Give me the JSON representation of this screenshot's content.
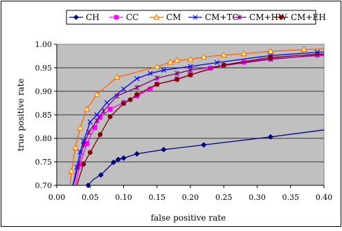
{
  "chart_data": {
    "type": "line",
    "title": "",
    "xlabel": "false positive rate",
    "ylabel": "true positive rate",
    "xlim": [
      0.0,
      0.4
    ],
    "ylim": [
      0.7,
      1.0
    ],
    "x_ticks": [
      "0.00",
      "0.05",
      "0.10",
      "0.15",
      "0.20",
      "0.25",
      "0.30",
      "0.35",
      "0.40"
    ],
    "y_ticks": [
      "0.70",
      "0.75",
      "0.80",
      "0.85",
      "0.90",
      "0.95",
      "1.00"
    ],
    "grid": "horizontal",
    "legend_position": "top",
    "plot_background": "#c0c0c0",
    "series": [
      {
        "name": "CH",
        "color": "#000080",
        "marker": "diamond",
        "points": [
          [
            0.047,
            0.7
          ],
          [
            0.055,
            0.713
          ],
          [
            0.066,
            0.722
          ],
          [
            0.085,
            0.749
          ],
          [
            0.092,
            0.755
          ],
          [
            0.1,
            0.758
          ],
          [
            0.12,
            0.767
          ],
          [
            0.16,
            0.776
          ],
          [
            0.22,
            0.786
          ],
          [
            0.32,
            0.803
          ],
          [
            0.4,
            0.818
          ]
        ],
        "marker_points": [
          [
            0.047,
            0.7
          ],
          [
            0.066,
            0.722
          ],
          [
            0.085,
            0.749
          ],
          [
            0.092,
            0.755
          ],
          [
            0.1,
            0.758
          ],
          [
            0.12,
            0.767
          ],
          [
            0.16,
            0.776
          ],
          [
            0.22,
            0.786
          ],
          [
            0.32,
            0.803
          ]
        ]
      },
      {
        "name": "CC",
        "color": "#ff00ff",
        "marker": "square",
        "points": [
          [
            0.028,
            0.7
          ],
          [
            0.035,
            0.745
          ],
          [
            0.045,
            0.789
          ],
          [
            0.057,
            0.823
          ],
          [
            0.065,
            0.845
          ],
          [
            0.08,
            0.862
          ],
          [
            0.1,
            0.876
          ],
          [
            0.12,
            0.89
          ],
          [
            0.14,
            0.905
          ],
          [
            0.15,
            0.915
          ],
          [
            0.18,
            0.926
          ],
          [
            0.2,
            0.935
          ],
          [
            0.23,
            0.949
          ],
          [
            0.28,
            0.962
          ],
          [
            0.32,
            0.97
          ],
          [
            0.4,
            0.976
          ]
        ],
        "marker_points": [
          [
            0.035,
            0.745
          ],
          [
            0.045,
            0.789
          ],
          [
            0.057,
            0.823
          ],
          [
            0.065,
            0.845
          ],
          [
            0.08,
            0.862
          ],
          [
            0.1,
            0.876
          ],
          [
            0.12,
            0.89
          ],
          [
            0.14,
            0.905
          ],
          [
            0.15,
            0.915
          ],
          [
            0.18,
            0.926
          ],
          [
            0.2,
            0.935
          ],
          [
            0.23,
            0.949
          ],
          [
            0.28,
            0.962
          ],
          [
            0.32,
            0.97
          ]
        ]
      },
      {
        "name": "CM",
        "color": "#ff6600",
        "marker": "triangle",
        "points": [
          [
            0.02,
            0.7
          ],
          [
            0.022,
            0.73
          ],
          [
            0.028,
            0.78
          ],
          [
            0.035,
            0.822
          ],
          [
            0.045,
            0.862
          ],
          [
            0.06,
            0.893
          ],
          [
            0.09,
            0.93
          ],
          [
            0.15,
            0.952
          ],
          [
            0.17,
            0.962
          ],
          [
            0.18,
            0.966
          ],
          [
            0.2,
            0.968
          ],
          [
            0.22,
            0.973
          ],
          [
            0.25,
            0.977
          ],
          [
            0.28,
            0.98
          ],
          [
            0.32,
            0.985
          ],
          [
            0.37,
            0.989
          ],
          [
            0.4,
            0.99
          ]
        ],
        "marker_points": [
          [
            0.022,
            0.73
          ],
          [
            0.028,
            0.78
          ],
          [
            0.035,
            0.822
          ],
          [
            0.045,
            0.862
          ],
          [
            0.06,
            0.893
          ],
          [
            0.09,
            0.93
          ],
          [
            0.15,
            0.952
          ],
          [
            0.17,
            0.962
          ],
          [
            0.18,
            0.966
          ],
          [
            0.2,
            0.968
          ],
          [
            0.22,
            0.973
          ],
          [
            0.25,
            0.977
          ],
          [
            0.28,
            0.98
          ],
          [
            0.32,
            0.985
          ],
          [
            0.37,
            0.989
          ]
        ]
      },
      {
        "name": "CM+TC",
        "color": "#0000ff",
        "marker": "x",
        "points": [
          [
            0.024,
            0.7
          ],
          [
            0.03,
            0.738
          ],
          [
            0.035,
            0.771
          ],
          [
            0.04,
            0.794
          ],
          [
            0.05,
            0.835
          ],
          [
            0.06,
            0.85
          ],
          [
            0.075,
            0.876
          ],
          [
            0.1,
            0.905
          ],
          [
            0.12,
            0.927
          ],
          [
            0.14,
            0.938
          ],
          [
            0.16,
            0.945
          ],
          [
            0.2,
            0.953
          ],
          [
            0.24,
            0.961
          ],
          [
            0.32,
            0.976
          ],
          [
            0.39,
            0.983
          ],
          [
            0.4,
            0.984
          ]
        ],
        "marker_points": [
          [
            0.03,
            0.738
          ],
          [
            0.035,
            0.771
          ],
          [
            0.04,
            0.794
          ],
          [
            0.05,
            0.835
          ],
          [
            0.06,
            0.85
          ],
          [
            0.075,
            0.876
          ],
          [
            0.1,
            0.905
          ],
          [
            0.12,
            0.927
          ],
          [
            0.14,
            0.938
          ],
          [
            0.16,
            0.945
          ],
          [
            0.2,
            0.953
          ],
          [
            0.24,
            0.961
          ],
          [
            0.32,
            0.976
          ],
          [
            0.39,
            0.983
          ]
        ]
      },
      {
        "name": "CM+HW",
        "color": "#800080",
        "marker": "star",
        "points": [
          [
            0.025,
            0.7
          ],
          [
            0.032,
            0.74
          ],
          [
            0.04,
            0.786
          ],
          [
            0.048,
            0.813
          ],
          [
            0.06,
            0.838
          ],
          [
            0.07,
            0.858
          ],
          [
            0.09,
            0.89
          ],
          [
            0.12,
            0.908
          ],
          [
            0.15,
            0.928
          ],
          [
            0.18,
            0.938
          ],
          [
            0.2,
            0.945
          ],
          [
            0.25,
            0.955
          ],
          [
            0.32,
            0.968
          ],
          [
            0.39,
            0.977
          ],
          [
            0.4,
            0.978
          ]
        ],
        "marker_points": [
          [
            0.032,
            0.74
          ],
          [
            0.04,
            0.786
          ],
          [
            0.048,
            0.813
          ],
          [
            0.06,
            0.838
          ],
          [
            0.07,
            0.858
          ],
          [
            0.09,
            0.89
          ],
          [
            0.12,
            0.908
          ],
          [
            0.15,
            0.928
          ],
          [
            0.18,
            0.938
          ],
          [
            0.2,
            0.945
          ],
          [
            0.25,
            0.955
          ],
          [
            0.32,
            0.968
          ],
          [
            0.39,
            0.977
          ]
        ]
      },
      {
        "name": "CM+EH",
        "color": "#800000",
        "marker": "circle",
        "points": [
          [
            0.03,
            0.7
          ],
          [
            0.04,
            0.745
          ],
          [
            0.05,
            0.77
          ],
          [
            0.065,
            0.808
          ],
          [
            0.08,
            0.846
          ],
          [
            0.1,
            0.874
          ],
          [
            0.11,
            0.882
          ],
          [
            0.12,
            0.893
          ],
          [
            0.15,
            0.915
          ],
          [
            0.18,
            0.925
          ],
          [
            0.2,
            0.935
          ],
          [
            0.25,
            0.956
          ],
          [
            0.32,
            0.972
          ],
          [
            0.4,
            0.98
          ]
        ],
        "marker_points": [
          [
            0.04,
            0.745
          ],
          [
            0.05,
            0.77
          ],
          [
            0.065,
            0.808
          ],
          [
            0.08,
            0.846
          ],
          [
            0.1,
            0.874
          ],
          [
            0.11,
            0.882
          ],
          [
            0.12,
            0.893
          ],
          [
            0.15,
            0.915
          ],
          [
            0.18,
            0.925
          ],
          [
            0.2,
            0.935
          ],
          [
            0.25,
            0.956
          ],
          [
            0.32,
            0.972
          ]
        ]
      }
    ]
  }
}
